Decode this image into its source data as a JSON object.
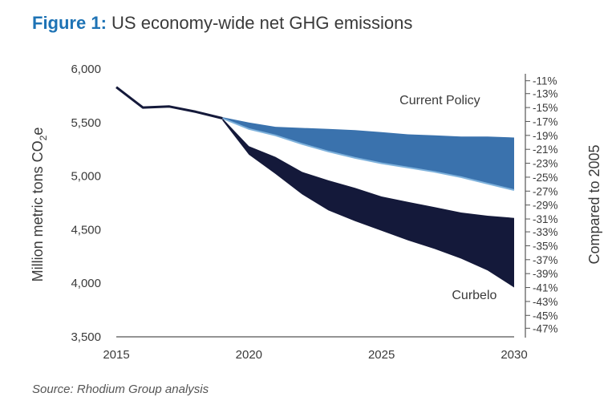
{
  "figure": {
    "prefix": "Figure 1:",
    "title": "US economy-wide net GHG emissions",
    "source": "Source: Rhodium Group analysis"
  },
  "colors": {
    "title_prefix": "#1e73b5",
    "current_policy": "#3a72ad",
    "current_policy_light": "#7fb2dc",
    "curbelo": "#14193a",
    "axis": "#555555"
  },
  "chart_data": {
    "type": "area",
    "title": "US economy-wide net GHG emissions",
    "ylabel": "Million metric tons CO2e",
    "ylabel_parts": [
      "Million metric tons CO",
      "2",
      "e"
    ],
    "y2label": "Compared to 2005",
    "xlim": [
      2015,
      2030
    ],
    "ylim": [
      3500,
      6000
    ],
    "xticks": [
      2015,
      2020,
      2025,
      2030
    ],
    "xtick_labels": [
      "2015",
      "2020",
      "2025",
      "2030"
    ],
    "yticks": [
      3500,
      4000,
      4500,
      5000,
      5500,
      6000
    ],
    "ytick_labels": [
      "3,500",
      "4,000",
      "4,500",
      "5,000",
      "5,500",
      "6,000"
    ],
    "y2ticks": [
      5890,
      5770,
      5640,
      5510,
      5380,
      5250,
      5120,
      4990,
      4860,
      4730,
      4600,
      4480,
      4350,
      4220,
      4090,
      3960,
      3830,
      3700,
      3580
    ],
    "y2tick_labels": [
      "-11%",
      "-13%",
      "-15%",
      "-17%",
      "-19%",
      "-21%",
      "-23%",
      "-25%",
      "-27%",
      "-29%",
      "-31%",
      "-33%",
      "-35%",
      "-37%",
      "-39%",
      "-41%",
      "-43%",
      "-45%",
      "-47%"
    ],
    "historical": {
      "x": [
        2015,
        2016,
        2017,
        2018,
        2019
      ],
      "y": [
        5830,
        5640,
        5650,
        5600,
        5540
      ]
    },
    "series": [
      {
        "name": "Current Policy",
        "x": [
          2019,
          2020,
          2021,
          2022,
          2023,
          2024,
          2025,
          2026,
          2027,
          2028,
          2029,
          2030
        ],
        "upper": [
          5550,
          5500,
          5460,
          5450,
          5440,
          5430,
          5410,
          5390,
          5380,
          5370,
          5370,
          5360
        ],
        "lower": [
          5540,
          5440,
          5380,
          5300,
          5230,
          5170,
          5120,
          5080,
          5040,
          4990,
          4930,
          4870
        ]
      },
      {
        "name": "Curbelo",
        "x": [
          2019,
          2020,
          2021,
          2022,
          2023,
          2024,
          2025,
          2026,
          2027,
          2028,
          2029,
          2030
        ],
        "upper": [
          5540,
          5280,
          5180,
          5040,
          4960,
          4890,
          4810,
          4760,
          4710,
          4660,
          4630,
          4610
        ],
        "lower": [
          5520,
          5200,
          5020,
          4830,
          4680,
          4580,
          4490,
          4400,
          4320,
          4230,
          4120,
          3960
        ]
      }
    ],
    "annotations": [
      {
        "text": "Current Policy",
        "x": 2027.2,
        "y": 5670
      },
      {
        "text": "Curbelo",
        "x": 2028.5,
        "y": 3850
      }
    ]
  }
}
